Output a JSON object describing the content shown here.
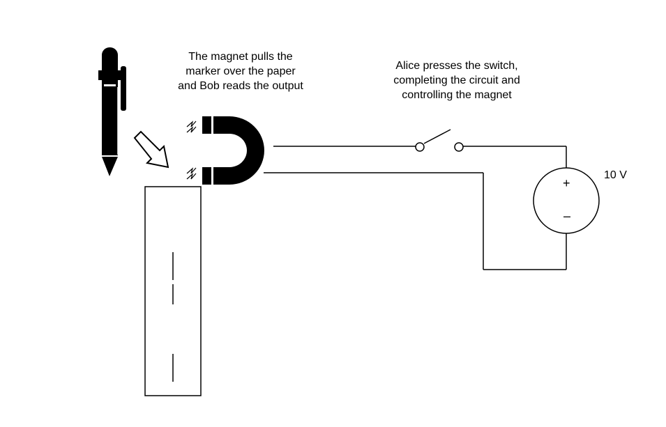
{
  "captions": {
    "magnet": [
      "The magnet pulls the",
      "marker over the paper",
      "and Bob reads the output"
    ],
    "switch": [
      "Alice presses the switch,",
      "completing the circuit and",
      "controlling the magnet"
    ]
  },
  "battery": {
    "voltage": "10 V",
    "plus": "+",
    "minus": "–"
  },
  "colors": {
    "ink": "#000000",
    "background": "#ffffff"
  },
  "icons": [
    "pen-icon",
    "arrow-icon",
    "horseshoe-magnet-icon",
    "magnetic-field-icon",
    "switch-icon",
    "voltage-source-icon"
  ]
}
